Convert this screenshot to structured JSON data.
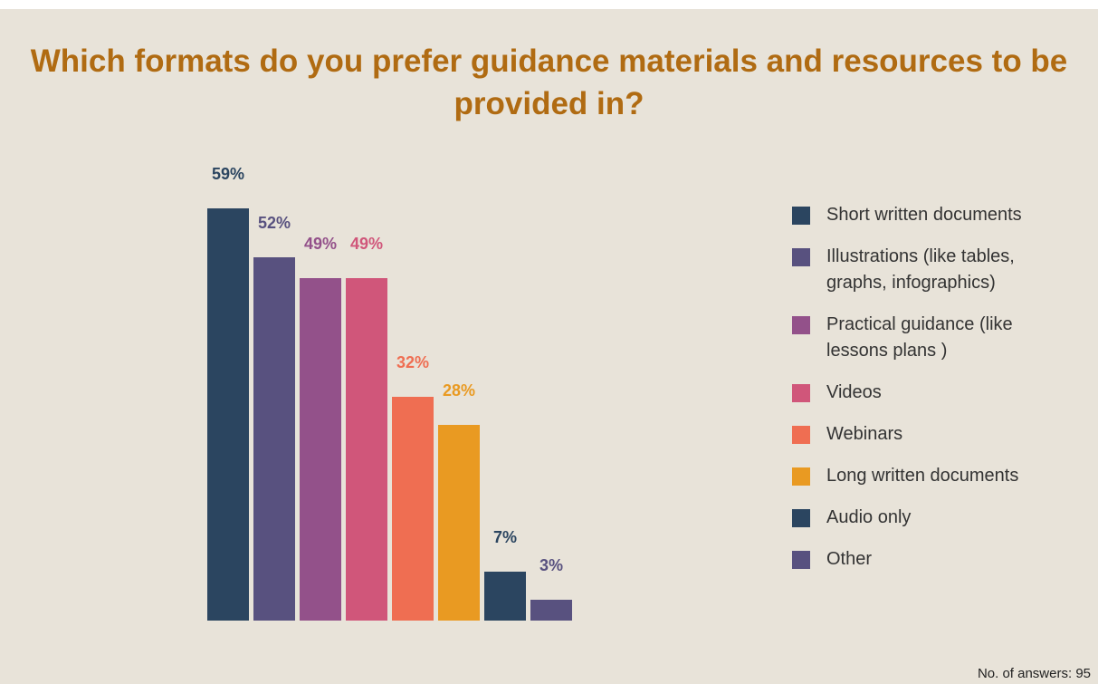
{
  "chart_data": {
    "type": "bar",
    "title": "Which formats do you prefer guidance materials and resources to be provided in?",
    "categories": [
      "Short written documents",
      "Illustrations (like tables, graphs, infographics)",
      "Practical guidance (like lessons plans )",
      "Videos",
      "Webinars",
      "Long written documents",
      "Audio only",
      "Other"
    ],
    "values": [
      59,
      52,
      49,
      49,
      32,
      28,
      7,
      3
    ],
    "value_labels": [
      "59%",
      "52%",
      "49%",
      "49%",
      "32%",
      "28%",
      "7%",
      "3%"
    ],
    "colors": [
      "#2b4560",
      "#58517f",
      "#93518a",
      "#d0567a",
      "#ef6e52",
      "#e99a22",
      "#2b4560",
      "#58517f"
    ],
    "legend": "right",
    "footnote": "No. of answers: 95"
  }
}
